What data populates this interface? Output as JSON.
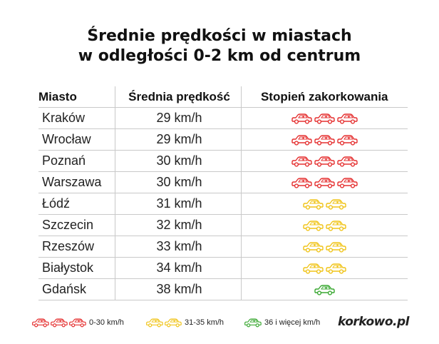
{
  "title": {
    "line1": "Średnie prędkości w miastach",
    "line2": "w odległości 0-2 km od centrum"
  },
  "table": {
    "headers": [
      "Miasto",
      "Średnia prędkość",
      "Stopień zakorkowania"
    ],
    "rows": [
      {
        "city": "Kraków",
        "speed": "29 km/h",
        "level": 3,
        "color": "#e53030"
      },
      {
        "city": "Wrocław",
        "speed": "29 km/h",
        "level": 3,
        "color": "#e53030"
      },
      {
        "city": "Poznań",
        "speed": "30 km/h",
        "level": 3,
        "color": "#e53030"
      },
      {
        "city": "Warszawa",
        "speed": "30 km/h",
        "level": 3,
        "color": "#e53030"
      },
      {
        "city": "Łódź",
        "speed": "31 km/h",
        "level": 2,
        "color": "#f0c419"
      },
      {
        "city": "Szczecin",
        "speed": "32 km/h",
        "level": 2,
        "color": "#f0c419"
      },
      {
        "city": "Rzeszów",
        "speed": "33 km/h",
        "level": 2,
        "color": "#f0c419"
      },
      {
        "city": "Białystok",
        "speed": "34 km/h",
        "level": 2,
        "color": "#f0c419"
      },
      {
        "city": "Gdańsk",
        "speed": "38 km/h",
        "level": 1,
        "color": "#3aa832"
      }
    ]
  },
  "legend": [
    {
      "label": "0-30 km/h",
      "cars": 3,
      "color": "#e53030"
    },
    {
      "label": "31-35 km/h",
      "cars": 2,
      "color": "#f0c419"
    },
    {
      "label": "36 i więcej km/h",
      "cars": 1,
      "color": "#3aa832"
    }
  ],
  "brand": "korkowo.pl",
  "icons": {
    "car": "car-icon"
  }
}
